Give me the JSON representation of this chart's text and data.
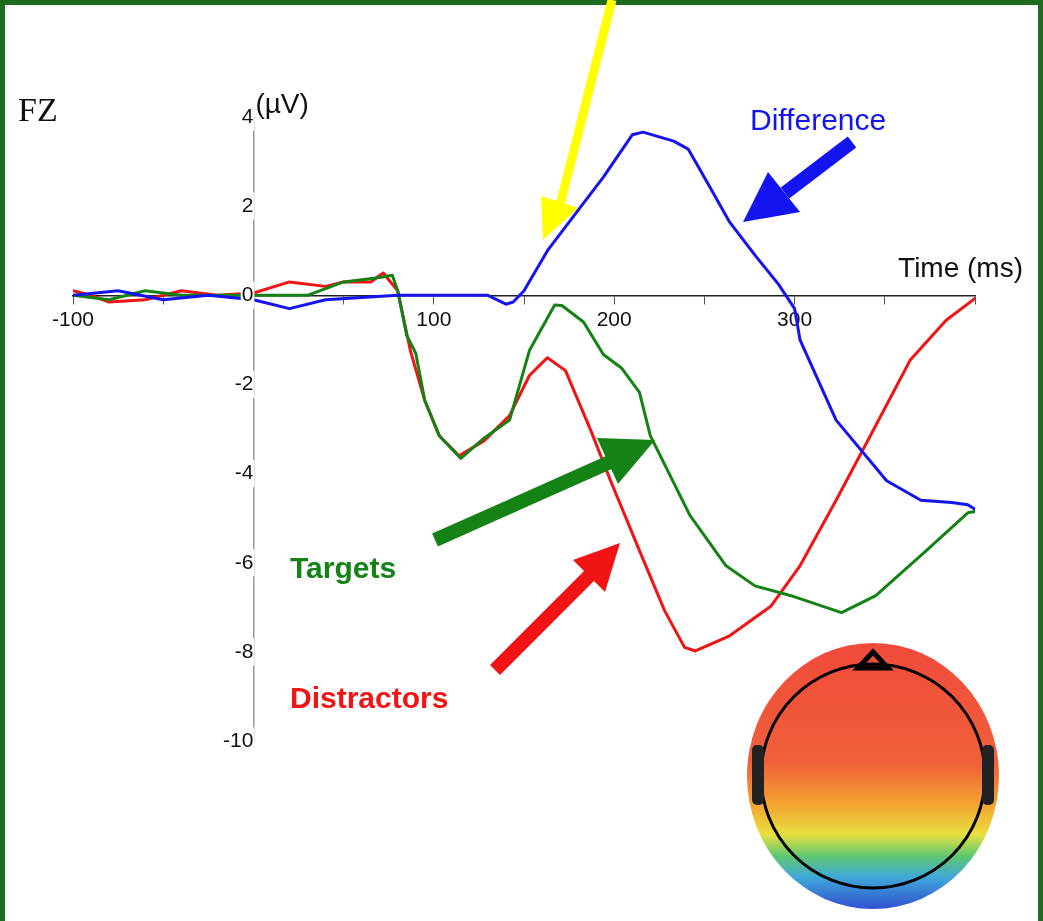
{
  "chart_data": {
    "type": "line",
    "title": "FZ",
    "xlabel": "Time (ms)",
    "ylabel": "(µV)",
    "xlim": [
      -100,
      400
    ],
    "ylim": [
      -10,
      4
    ],
    "xticks": [
      -100,
      {
        "value": -50,
        "label": null
      },
      {
        "value": 0,
        "label": null
      },
      {
        "value": 50,
        "label": null
      },
      100,
      {
        "value": 150,
        "label": null
      },
      200,
      {
        "value": 250,
        "label": null
      },
      300,
      {
        "value": 350,
        "label": null
      },
      {
        "value": 400,
        "label": null
      }
    ],
    "yticks": [
      -10,
      -8,
      -6,
      -4,
      -2,
      0,
      2,
      4
    ],
    "legend": false,
    "marker": "none",
    "line_style": "solid",
    "series": [
      {
        "name": "Difference",
        "color": "#1414f0",
        "x": [
          -100,
          -75,
          -50,
          -25,
          0,
          20,
          40,
          80,
          130,
          140,
          144,
          150,
          163,
          181,
          194,
          210,
          216,
          233,
          241,
          252,
          264,
          279,
          291,
          300,
          303,
          323,
          351,
          370,
          387,
          396,
          400
        ],
        "values": [
          0,
          0.1,
          -0.1,
          0,
          -0.1,
          -0.3,
          -0.1,
          0,
          0,
          -0.2,
          -0.15,
          0.1,
          1.0,
          1.96,
          2.65,
          3.6,
          3.66,
          3.46,
          3.28,
          2.5,
          1.64,
          0.85,
          0.25,
          -0.3,
          -1.0,
          -2.8,
          -4.16,
          -4.6,
          -4.65,
          -4.7,
          -4.8
        ]
      },
      {
        "name": "Targets",
        "color": "#148214",
        "x": [
          -100,
          -80,
          -60,
          -40,
          -30,
          0,
          30,
          50,
          70,
          77,
          80,
          85,
          90,
          95,
          103,
          115,
          128,
          142,
          153,
          167,
          171,
          183,
          194,
          204,
          214,
          220,
          242,
          262,
          278,
          298,
          326,
          345,
          373,
          396,
          400
        ],
        "values": [
          0,
          -0.1,
          0.1,
          0,
          0,
          0,
          0,
          0.3,
          0.4,
          0.45,
          0.1,
          -0.9,
          -1.3,
          -2.36,
          -3.15,
          -3.66,
          -3.2,
          -2.8,
          -1.24,
          -0.22,
          -0.23,
          -0.6,
          -1.33,
          -1.63,
          -2.18,
          -3.15,
          -4.94,
          -6.07,
          -6.52,
          -6.74,
          -7.12,
          -6.74,
          -5.73,
          -4.88,
          -4.85
        ]
      },
      {
        "name": "Distractors",
        "color": "#f01414",
        "x": [
          -100,
          -90,
          -80,
          -60,
          -40,
          -30,
          -20,
          0,
          20,
          40,
          50,
          65,
          72,
          80,
          87,
          95,
          103,
          114,
          128,
          142,
          153,
          163,
          173,
          187,
          198,
          214,
          228,
          239,
          245,
          264,
          287,
          303,
          323,
          342,
          364,
          384,
          400
        ],
        "values": [
          0.1,
          0,
          -0.15,
          -0.1,
          0.1,
          0.05,
          0,
          0.05,
          0.3,
          0.2,
          0.3,
          0.3,
          0.5,
          0.1,
          -1.24,
          -2.36,
          -3.15,
          -3.6,
          -3.26,
          -2.7,
          -1.8,
          -1.4,
          -1.69,
          -3.03,
          -4.16,
          -5.73,
          -7.08,
          -7.9,
          -7.98,
          -7.64,
          -6.97,
          -6.07,
          -4.6,
          -3.15,
          -1.46,
          -0.56,
          -0.07
        ]
      }
    ]
  }
}
